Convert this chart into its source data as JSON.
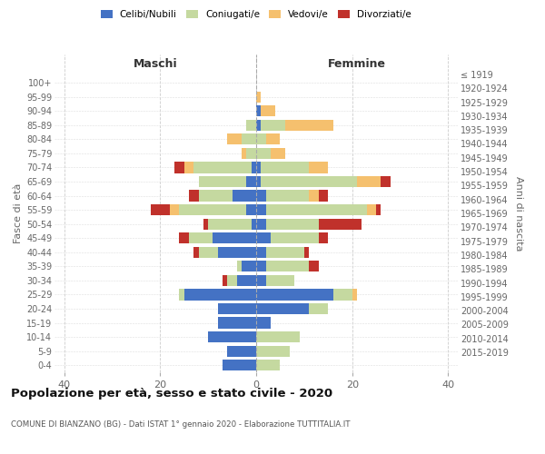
{
  "age_groups": [
    "0-4",
    "5-9",
    "10-14",
    "15-19",
    "20-24",
    "25-29",
    "30-34",
    "35-39",
    "40-44",
    "45-49",
    "50-54",
    "55-59",
    "60-64",
    "65-69",
    "70-74",
    "75-79",
    "80-84",
    "85-89",
    "90-94",
    "95-99",
    "100+"
  ],
  "birth_years": [
    "2015-2019",
    "2010-2014",
    "2005-2009",
    "2000-2004",
    "1995-1999",
    "1990-1994",
    "1985-1989",
    "1980-1984",
    "1975-1979",
    "1970-1974",
    "1965-1969",
    "1960-1964",
    "1955-1959",
    "1950-1954",
    "1945-1949",
    "1940-1944",
    "1935-1939",
    "1930-1934",
    "1925-1929",
    "1920-1924",
    "≤ 1919"
  ],
  "male": {
    "celibi": [
      7,
      6,
      10,
      8,
      8,
      15,
      4,
      3,
      8,
      9,
      1,
      2,
      5,
      2,
      1,
      0,
      0,
      0,
      0,
      0,
      0
    ],
    "coniugati": [
      0,
      0,
      0,
      0,
      0,
      1,
      2,
      1,
      4,
      5,
      9,
      14,
      7,
      10,
      12,
      2,
      3,
      2,
      0,
      0,
      0
    ],
    "vedovi": [
      0,
      0,
      0,
      0,
      0,
      0,
      0,
      0,
      0,
      0,
      0,
      2,
      0,
      0,
      2,
      1,
      3,
      0,
      0,
      0,
      0
    ],
    "divorziati": [
      0,
      0,
      0,
      0,
      0,
      0,
      1,
      0,
      1,
      2,
      1,
      4,
      2,
      0,
      2,
      0,
      0,
      0,
      0,
      0,
      0
    ]
  },
  "female": {
    "nubili": [
      0,
      0,
      0,
      3,
      11,
      16,
      2,
      2,
      2,
      3,
      2,
      2,
      2,
      1,
      1,
      0,
      0,
      1,
      1,
      0,
      0
    ],
    "coniugate": [
      5,
      7,
      9,
      0,
      4,
      4,
      6,
      9,
      8,
      10,
      11,
      21,
      9,
      20,
      10,
      3,
      2,
      5,
      0,
      0,
      0
    ],
    "vedove": [
      0,
      0,
      0,
      0,
      0,
      1,
      0,
      0,
      0,
      0,
      0,
      2,
      2,
      5,
      4,
      3,
      3,
      10,
      3,
      1,
      0
    ],
    "divorziate": [
      0,
      0,
      0,
      0,
      0,
      0,
      0,
      2,
      1,
      2,
      9,
      1,
      2,
      2,
      0,
      0,
      0,
      0,
      0,
      0,
      0
    ]
  },
  "colors": {
    "celibi": "#4472C4",
    "coniugati": "#C5D9A0",
    "vedovi": "#F5C06E",
    "divorziati": "#C0312B"
  },
  "xlim": 42,
  "title": "Popolazione per età, sesso e stato civile - 2020",
  "subtitle": "COMUNE DI BIANZANO (BG) - Dati ISTAT 1° gennaio 2020 - Elaborazione TUTTITALIA.IT",
  "ylabel_left": "Fasce di età",
  "ylabel_right": "Anni di nascita",
  "xlabel_left": "Maschi",
  "xlabel_right": "Femmine",
  "bg_color": "#FFFFFF",
  "grid_color": "#CCCCCC"
}
